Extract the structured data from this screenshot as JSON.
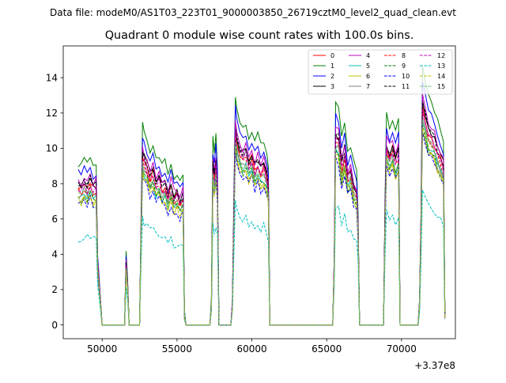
{
  "suptitle": "Data file: modeM0/AS1T03_223T01_9000003850_26719cztM0_level2_quad_clean.evt",
  "chart_data": {
    "type": "line",
    "title": "Quadrant 0 module wise count rates with 100.0s bins.",
    "xlabel": "",
    "ylabel": "",
    "x_offset_label": "+3.37e8",
    "xlim": [
      47400,
      73600
    ],
    "ylim": [
      -0.78,
      15.8
    ],
    "x_ticks": [
      50000,
      55000,
      60000,
      65000,
      70000
    ],
    "x_tick_labels": [
      "50000",
      "55000",
      "60000",
      "65000",
      "70000"
    ],
    "y_ticks": [
      0,
      2,
      4,
      6,
      8,
      10,
      12,
      14
    ],
    "y_tick_labels": [
      "0",
      "2",
      "4",
      "6",
      "8",
      "10",
      "12",
      "14"
    ],
    "grid": false,
    "legend_position": "top-right",
    "segments": [
      {
        "start": 48400,
        "end": 49600
      },
      {
        "start": 51600,
        "end": 51700
      },
      {
        "start": 52600,
        "end": 55400
      },
      {
        "start": 57400,
        "end": 57700
      },
      {
        "start": 58800,
        "end": 61100
      },
      {
        "start": 65600,
        "end": 67100
      },
      {
        "start": 68900,
        "end": 69800
      },
      {
        "start": 71200,
        "end": 72900
      }
    ],
    "peak_template": {
      "x": [
        48400,
        48600,
        48800,
        49000,
        49200,
        49400,
        49600,
        49700,
        50000,
        51500,
        51600,
        51700,
        51800,
        52500,
        52600,
        52700,
        52800,
        53000,
        53200,
        53400,
        53600,
        53800,
        54000,
        54200,
        54400,
        54600,
        54800,
        55000,
        55200,
        55400,
        55500,
        55600,
        57200,
        57300,
        57400,
        57500,
        57600,
        57700,
        57800,
        58600,
        58700,
        58800,
        58900,
        59000,
        59200,
        59400,
        59600,
        59800,
        60000,
        60200,
        60400,
        60600,
        60800,
        61000,
        61100,
        61200,
        65400,
        65500,
        65600,
        65800,
        66000,
        66200,
        66400,
        66600,
        66800,
        67000,
        67100,
        67200,
        68800,
        68900,
        69000,
        69200,
        69400,
        69600,
        69800,
        69900,
        71100,
        71200,
        71300,
        71400,
        71600,
        71800,
        72000,
        72200,
        72400,
        72600,
        72800,
        72900
      ],
      "y": [
        0.7,
        0.69,
        0.72,
        0.7,
        0.73,
        0.69,
        0.7,
        0.3,
        0.0,
        0.0,
        0.32,
        0.2,
        0.0,
        0.0,
        0.45,
        0.86,
        0.83,
        0.8,
        0.75,
        0.78,
        0.72,
        0.74,
        0.69,
        0.71,
        0.65,
        0.7,
        0.64,
        0.66,
        0.62,
        0.65,
        0.05,
        0.0,
        0.0,
        0.1,
        0.8,
        0.74,
        0.82,
        0.7,
        0.0,
        0.0,
        0.1,
        0.55,
        1.0,
        0.93,
        0.88,
        0.85,
        0.87,
        0.82,
        0.85,
        0.79,
        0.82,
        0.78,
        0.8,
        0.75,
        0.7,
        0.0,
        0.0,
        0.3,
        0.96,
        0.94,
        0.8,
        0.88,
        0.75,
        0.78,
        0.7,
        0.67,
        0.5,
        0.0,
        0.0,
        0.55,
        0.91,
        0.86,
        0.9,
        0.83,
        0.88,
        0.0,
        0.0,
        0.1,
        0.5,
        1.12,
        1.05,
        0.98,
        0.96,
        0.93,
        0.88,
        0.84,
        0.8,
        0.05
      ]
    },
    "series": [
      {
        "name": "0",
        "color": "#ff0000",
        "style": "solid",
        "scale": 11.1
      },
      {
        "name": "1",
        "color": "#008000",
        "style": "solid",
        "scale": 13.1
      },
      {
        "name": "2",
        "color": "#0000ff",
        "style": "solid",
        "scale": 12.3
      },
      {
        "name": "3",
        "color": "#000000",
        "style": "solid",
        "scale": 11.4
      },
      {
        "name": "4",
        "color": "#bf00bf",
        "style": "solid",
        "scale": 11.7
      },
      {
        "name": "5",
        "color": "#00bfbf",
        "style": "solid",
        "scale": 10.3
      },
      {
        "name": "6",
        "color": "#bfbf00",
        "style": "solid",
        "scale": 10.0
      },
      {
        "name": "7",
        "color": "#808080",
        "style": "solid",
        "scale": 10.6
      },
      {
        "name": "8",
        "color": "#ff0000",
        "style": "dashed",
        "scale": 10.8
      },
      {
        "name": "9",
        "color": "#008000",
        "style": "dashed",
        "scale": 10.2
      },
      {
        "name": "10",
        "color": "#0000ff",
        "style": "dashed",
        "scale": 9.8
      },
      {
        "name": "11",
        "color": "#000000",
        "style": "dashed",
        "scale": 11.3
      },
      {
        "name": "12",
        "color": "#bf00bf",
        "style": "dashed",
        "scale": 11.0
      },
      {
        "name": "13",
        "color": "#00bfbf",
        "style": "dashed",
        "scale": 7.0
      },
      {
        "name": "14",
        "color": "#bfbf00",
        "style": "dashed",
        "scale": 10.1
      },
      {
        "name": "15",
        "color": "#6fbf6f",
        "style": "dashed",
        "scale": 10.5
      }
    ]
  }
}
